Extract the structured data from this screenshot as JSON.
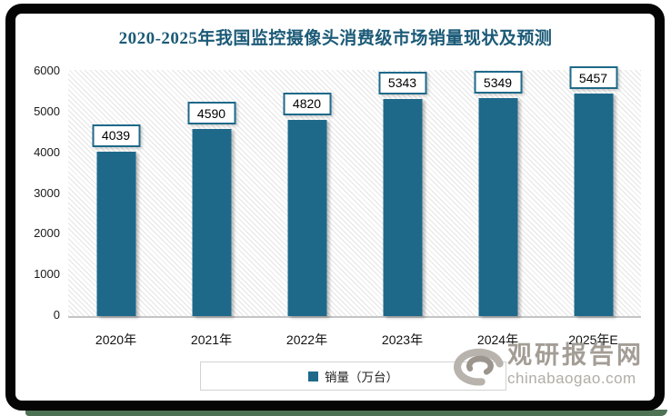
{
  "title": "2020-2025年我国监控摄像头消费级市场销量现状及预测",
  "chart_data": {
    "type": "bar",
    "title": "2020-2025年我国监控摄像头消费级市场销量现状及预测",
    "categories": [
      "2020年",
      "2021年",
      "2022年",
      "2023年",
      "2024年",
      "2025年E"
    ],
    "values": [
      4039,
      4590,
      4820,
      5343,
      5349,
      5457
    ],
    "series_name": "销量（万台）",
    "xlabel": "",
    "ylabel": "",
    "ylim": [
      0,
      6000
    ],
    "yticks": [
      0,
      1000,
      2000,
      3000,
      4000,
      5000,
      6000
    ],
    "grid": false,
    "value_labels_shown": true,
    "legend_position": "bottom",
    "bar_color": "#1e698a"
  },
  "legend": {
    "label": "销量（万台）"
  },
  "watermark": {
    "brand": "观研报告网",
    "domain": "chinabaogao.com"
  },
  "colors": {
    "bar": "#1e698a",
    "title_text": "#1b5a77",
    "frame_border": "#050505",
    "frame_accent_green": "#4d7354",
    "watermark_gray": "#a39d95"
  }
}
